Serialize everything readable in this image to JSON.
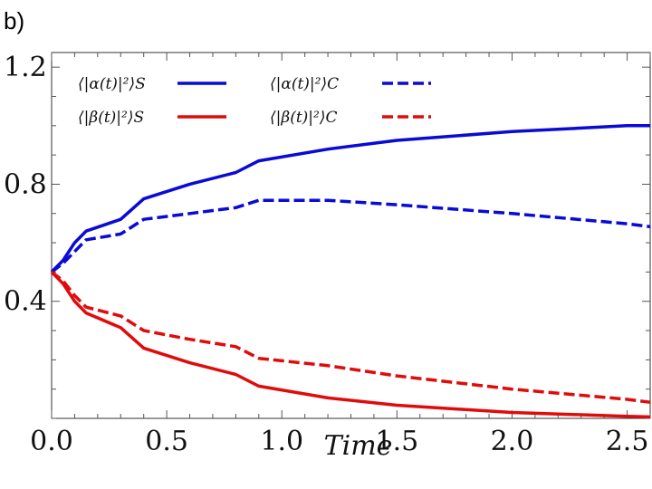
{
  "panel_label": "b)",
  "chart_data": {
    "type": "line",
    "title": "",
    "xlabel": "Time",
    "ylabel": "",
    "xlim": [
      0,
      2.6
    ],
    "ylim": [
      0.0,
      1.25
    ],
    "xticks": [
      0.0,
      0.5,
      1.0,
      1.5,
      2.0,
      2.5
    ],
    "xtick_labels": [
      "0.0",
      "0.5",
      "1.0",
      "1.5",
      "2.0",
      "2.5"
    ],
    "yticks": [
      0.4,
      0.8,
      1.2
    ],
    "ytick_labels": [
      "0.4",
      "0.8",
      "1.2"
    ],
    "grid": false,
    "legend_position": "top-left",
    "series": [
      {
        "name": "⟨|α(t)|²⟩S",
        "color": "#0a0ad6",
        "style": "solid",
        "x": [
          0,
          0.05,
          0.1,
          0.15,
          0.3,
          0.4,
          0.6,
          0.8,
          0.9,
          1.2,
          1.5,
          2.0,
          2.5,
          2.6
        ],
        "y": [
          0.5,
          0.54,
          0.6,
          0.64,
          0.68,
          0.75,
          0.8,
          0.84,
          0.88,
          0.92,
          0.95,
          0.98,
          1.0,
          1.0
        ]
      },
      {
        "name": "⟨|β(t)|²⟩S",
        "color": "#e00b0b",
        "style": "solid",
        "x": [
          0,
          0.05,
          0.1,
          0.15,
          0.3,
          0.4,
          0.6,
          0.8,
          0.9,
          1.2,
          1.5,
          2.0,
          2.5,
          2.6
        ],
        "y": [
          0.5,
          0.46,
          0.4,
          0.36,
          0.31,
          0.24,
          0.19,
          0.15,
          0.11,
          0.07,
          0.045,
          0.02,
          0.007,
          0.005
        ]
      },
      {
        "name": "⟨|α(t)|²⟩C",
        "color": "#0a0ad6",
        "style": "dashed",
        "x": [
          0,
          0.05,
          0.1,
          0.15,
          0.3,
          0.4,
          0.6,
          0.8,
          0.9,
          1.2,
          1.5,
          2.0,
          2.5,
          2.6
        ],
        "y": [
          0.5,
          0.53,
          0.57,
          0.61,
          0.63,
          0.68,
          0.7,
          0.72,
          0.745,
          0.745,
          0.73,
          0.7,
          0.665,
          0.655
        ]
      },
      {
        "name": "⟨|β(t)|²⟩C",
        "color": "#e00b0b",
        "style": "dashed",
        "x": [
          0,
          0.05,
          0.1,
          0.15,
          0.3,
          0.4,
          0.6,
          0.8,
          0.9,
          1.2,
          1.5,
          2.0,
          2.5,
          2.6
        ],
        "y": [
          0.5,
          0.47,
          0.42,
          0.38,
          0.35,
          0.3,
          0.27,
          0.245,
          0.205,
          0.18,
          0.145,
          0.1,
          0.065,
          0.055
        ]
      }
    ]
  }
}
